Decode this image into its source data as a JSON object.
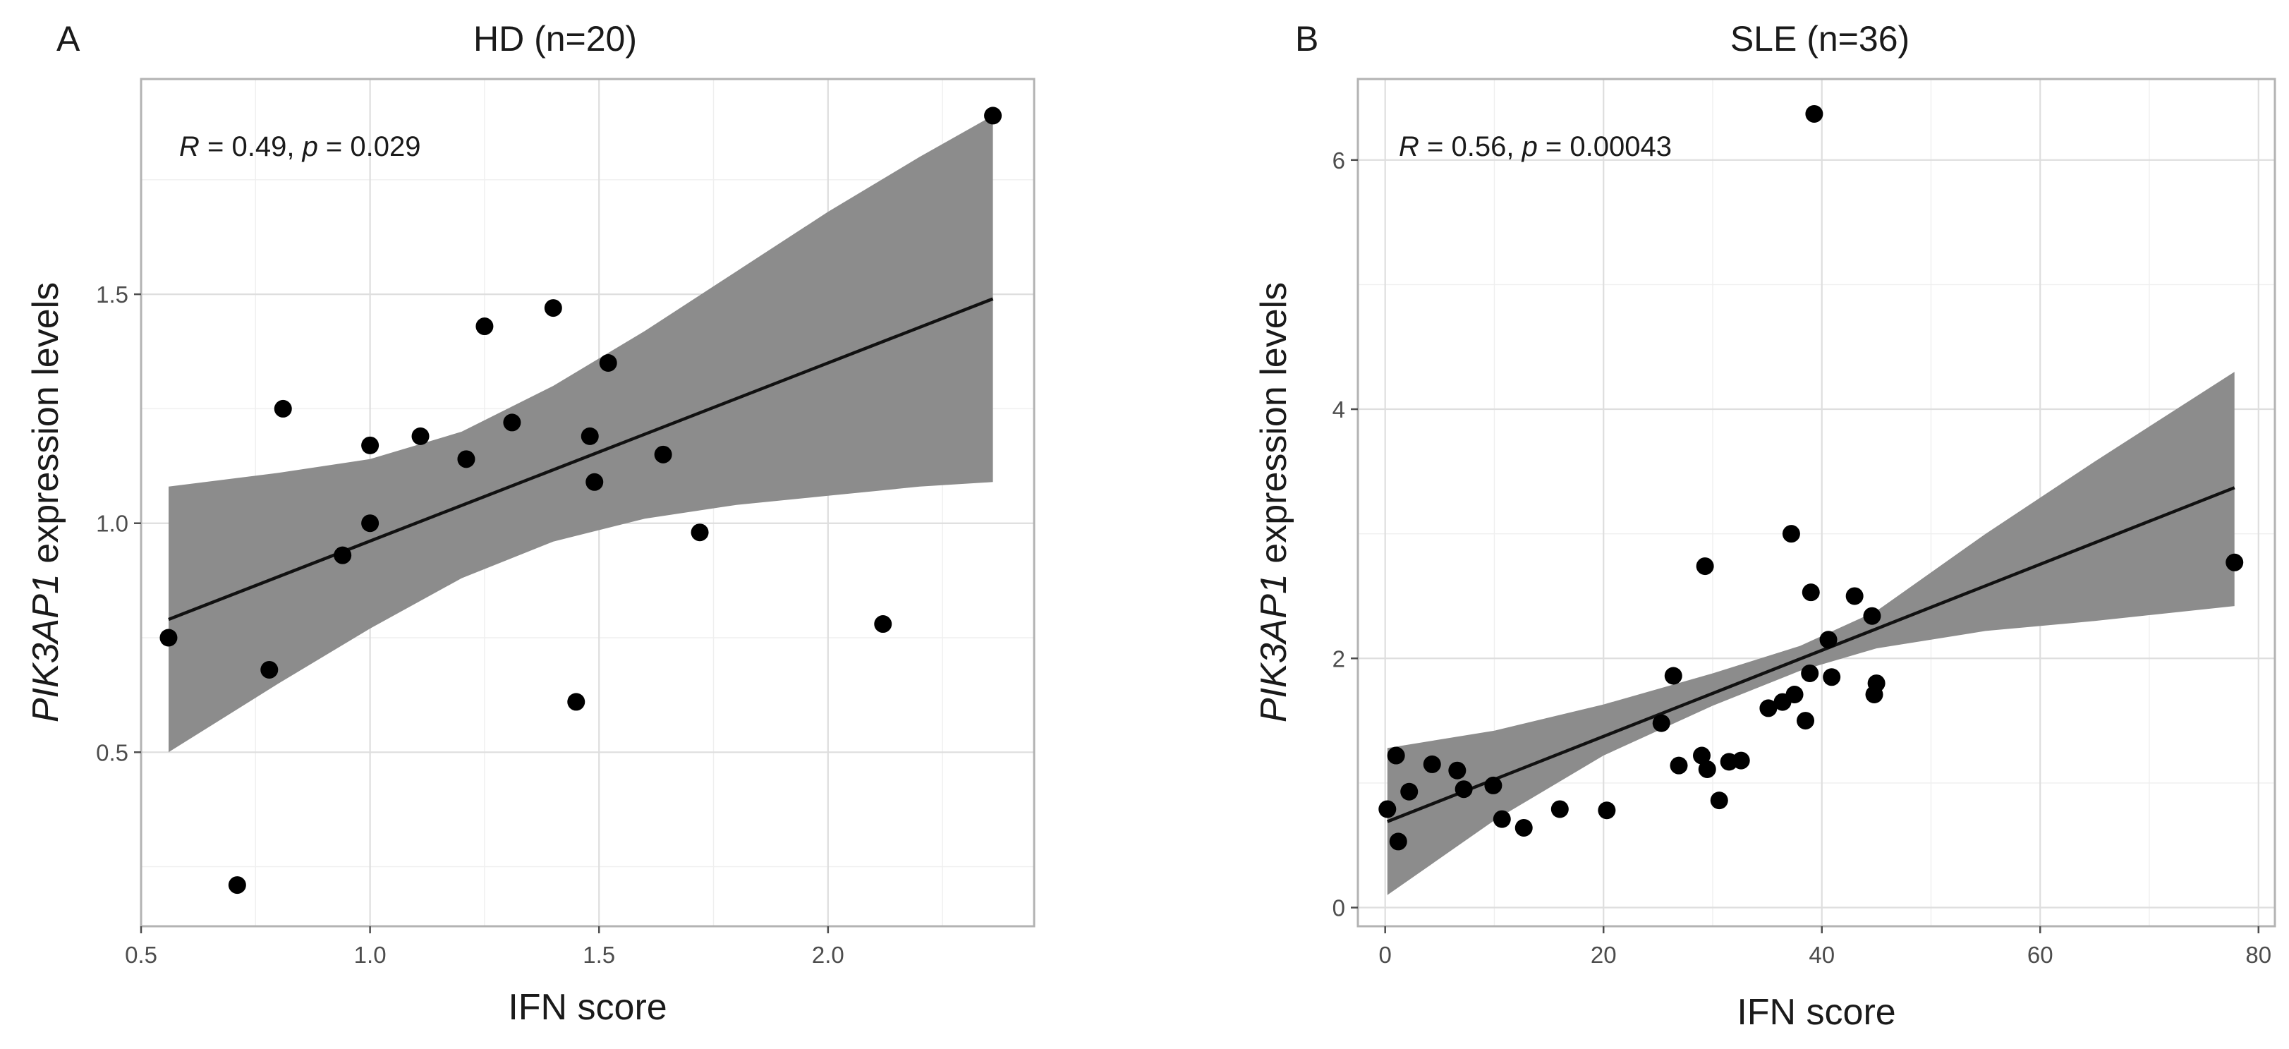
{
  "chart_data": [
    {
      "panel": "A",
      "type": "scatter",
      "title": "HD (n=20)",
      "xlabel": "IFN score",
      "ylabel_italic": "PIK3AP1",
      "ylabel_rest": " expression levels",
      "xlim": [
        0.5,
        2.45
      ],
      "ylim": [
        0.12,
        1.97
      ],
      "xticks": [
        0.5,
        1.0,
        1.5,
        2.0
      ],
      "xtick_labels": [
        "0.5",
        "1.0",
        "1.5",
        "2.0"
      ],
      "yticks": [
        0.5,
        1.0,
        1.5
      ],
      "ytick_labels": [
        "0.5",
        "1.0",
        "1.5"
      ],
      "xminor": [
        0.75,
        1.25,
        1.75,
        2.25
      ],
      "yminor": [
        0.25,
        0.75,
        1.25,
        1.75
      ],
      "annotation": {
        "r_label": "R",
        "r_text": " = 0.49, ",
        "p_label": "p",
        "p_text": " = 0.029"
      },
      "points": [
        [
          0.56,
          0.75
        ],
        [
          0.71,
          0.21
        ],
        [
          0.78,
          0.68
        ],
        [
          0.81,
          1.25
        ],
        [
          0.94,
          0.93
        ],
        [
          1.0,
          1.17
        ],
        [
          1.0,
          1.0
        ],
        [
          1.11,
          1.19
        ],
        [
          1.21,
          1.14
        ],
        [
          1.25,
          1.43
        ],
        [
          1.31,
          1.22
        ],
        [
          1.4,
          1.47
        ],
        [
          1.45,
          0.61
        ],
        [
          1.48,
          1.19
        ],
        [
          1.49,
          1.09
        ],
        [
          1.52,
          1.35
        ],
        [
          1.64,
          1.15
        ],
        [
          1.72,
          0.98
        ],
        [
          2.12,
          0.78
        ],
        [
          2.36,
          1.89
        ]
      ],
      "fit": {
        "x": [
          0.56,
          2.36
        ],
        "y": [
          0.79,
          1.49
        ]
      },
      "ci_band": {
        "x": [
          0.56,
          0.8,
          1.0,
          1.2,
          1.4,
          1.6,
          1.8,
          2.0,
          2.2,
          2.36
        ],
        "lower": [
          0.5,
          0.65,
          0.77,
          0.88,
          0.96,
          1.01,
          1.04,
          1.06,
          1.08,
          1.09
        ],
        "upper": [
          1.08,
          1.11,
          1.14,
          1.2,
          1.3,
          1.42,
          1.55,
          1.68,
          1.8,
          1.89
        ]
      }
    },
    {
      "panel": "B",
      "type": "scatter",
      "title": "SLE (n=36)",
      "xlabel": "IFN score",
      "ylabel_italic": "PIK3AP1",
      "ylabel_rest": " expression levels",
      "xlim": [
        -2.5,
        81.5
      ],
      "ylim": [
        -0.15,
        6.65
      ],
      "xticks": [
        0,
        20,
        40,
        60,
        80
      ],
      "xtick_labels": [
        "0",
        "20",
        "40",
        "60",
        "80"
      ],
      "yticks": [
        0,
        2,
        4,
        6
      ],
      "ytick_labels": [
        "0",
        "2",
        "4",
        "6"
      ],
      "xminor": [
        10,
        30,
        50,
        70
      ],
      "yminor": [
        1,
        3,
        5
      ],
      "annotation": {
        "r_label": "R",
        "r_text": " = 0.56, ",
        "p_label": "p",
        "p_text": " = 0.00043"
      },
      "points": [
        [
          0.2,
          0.79
        ],
        [
          1.0,
          1.22
        ],
        [
          1.2,
          0.53
        ],
        [
          2.2,
          0.93
        ],
        [
          4.3,
          1.15
        ],
        [
          6.6,
          1.1
        ],
        [
          7.2,
          0.95
        ],
        [
          9.9,
          0.98
        ],
        [
          10.7,
          0.71
        ],
        [
          12.7,
          0.64
        ],
        [
          16.0,
          0.79
        ],
        [
          20.3,
          0.78
        ],
        [
          25.3,
          1.48
        ],
        [
          26.4,
          1.86
        ],
        [
          26.9,
          1.14
        ],
        [
          29.0,
          1.22
        ],
        [
          29.3,
          2.74
        ],
        [
          29.5,
          1.11
        ],
        [
          30.6,
          0.86
        ],
        [
          31.5,
          1.17
        ],
        [
          32.6,
          1.18
        ],
        [
          35.1,
          1.6
        ],
        [
          36.4,
          1.65
        ],
        [
          37.2,
          3.0
        ],
        [
          37.5,
          1.71
        ],
        [
          38.5,
          1.5
        ],
        [
          38.9,
          1.88
        ],
        [
          39.0,
          2.53
        ],
        [
          39.3,
          6.37
        ],
        [
          40.6,
          2.15
        ],
        [
          40.9,
          1.85
        ],
        [
          43.0,
          2.5
        ],
        [
          44.6,
          2.34
        ],
        [
          44.8,
          1.71
        ],
        [
          45.0,
          1.8
        ],
        [
          77.8,
          2.77
        ]
      ],
      "fit": {
        "x": [
          0.2,
          77.8
        ],
        "y": [
          0.69,
          3.37
        ]
      },
      "ci_band": {
        "x": [
          0.2,
          10,
          20,
          30,
          38,
          45,
          55,
          65,
          77.8
        ],
        "lower": [
          0.1,
          0.7,
          1.22,
          1.62,
          1.9,
          2.08,
          2.22,
          2.3,
          2.42
        ],
        "upper": [
          1.28,
          1.42,
          1.63,
          1.88,
          2.1,
          2.38,
          3.0,
          3.58,
          4.3
        ]
      }
    }
  ]
}
